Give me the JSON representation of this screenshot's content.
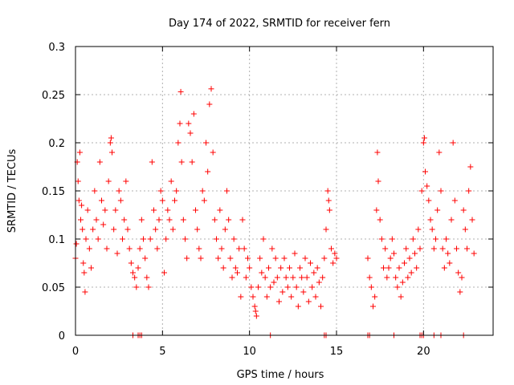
{
  "chart_data": {
    "type": "scatter",
    "title": "Day 174 of 2022, SRMTID for receiver fern",
    "xlabel": "GPS time / hours",
    "ylabel": "SRMTID / TECUs",
    "xlim": [
      0,
      24
    ],
    "ylim": [
      0,
      0.3
    ],
    "xticks": [
      0,
      5,
      10,
      15,
      20
    ],
    "yticks": [
      0,
      0.05,
      0.1,
      0.15,
      0.2,
      0.25,
      0.3
    ],
    "grid": true,
    "marker": "plus",
    "color": "#ff0000",
    "series": [
      {
        "points": [
          [
            0.0,
            0.08
          ],
          [
            0.05,
            0.095
          ],
          [
            0.1,
            0.18
          ],
          [
            0.15,
            0.16
          ],
          [
            0.2,
            0.14
          ],
          [
            0.25,
            0.19
          ],
          [
            0.3,
            0.12
          ],
          [
            0.35,
            0.135
          ],
          [
            0.4,
            0.11
          ],
          [
            0.45,
            0.075
          ],
          [
            0.5,
            0.065
          ],
          [
            0.55,
            0.045
          ],
          [
            0.6,
            0.1
          ],
          [
            0.7,
            0.13
          ],
          [
            0.8,
            0.09
          ],
          [
            0.9,
            0.07
          ],
          [
            1.0,
            0.11
          ],
          [
            1.1,
            0.15
          ],
          [
            1.2,
            0.12
          ],
          [
            1.3,
            0.1
          ],
          [
            1.4,
            0.18
          ],
          [
            1.5,
            0.14
          ],
          [
            1.6,
            0.115
          ],
          [
            1.7,
            0.13
          ],
          [
            1.8,
            0.09
          ],
          [
            1.9,
            0.16
          ],
          [
            2.0,
            0.2
          ],
          [
            2.05,
            0.205
          ],
          [
            2.1,
            0.19
          ],
          [
            2.2,
            0.11
          ],
          [
            2.3,
            0.13
          ],
          [
            2.4,
            0.085
          ],
          [
            2.5,
            0.15
          ],
          [
            2.6,
            0.14
          ],
          [
            2.7,
            0.1
          ],
          [
            2.8,
            0.12
          ],
          [
            2.9,
            0.16
          ],
          [
            3.0,
            0.11
          ],
          [
            3.1,
            0.09
          ],
          [
            3.2,
            0.075
          ],
          [
            3.3,
            0.065
          ],
          [
            3.4,
            0.06
          ],
          [
            3.5,
            0.05
          ],
          [
            3.6,
            0.07
          ],
          [
            3.7,
            0.09
          ],
          [
            3.8,
            0.12
          ],
          [
            3.9,
            0.1
          ],
          [
            4.0,
            0.08
          ],
          [
            4.1,
            0.06
          ],
          [
            4.2,
            0.05
          ],
          [
            4.3,
            0.1
          ],
          [
            4.4,
            0.18
          ],
          [
            4.5,
            0.13
          ],
          [
            4.6,
            0.11
          ],
          [
            4.7,
            0.09
          ],
          [
            4.8,
            0.12
          ],
          [
            4.9,
            0.15
          ],
          [
            5.0,
            0.14
          ],
          [
            5.1,
            0.065
          ],
          [
            5.2,
            0.1
          ],
          [
            5.3,
            0.13
          ],
          [
            5.4,
            0.12
          ],
          [
            5.5,
            0.16
          ],
          [
            5.6,
            0.11
          ],
          [
            5.7,
            0.14
          ],
          [
            5.8,
            0.15
          ],
          [
            5.9,
            0.2
          ],
          [
            6.0,
            0.22
          ],
          [
            6.05,
            0.253
          ],
          [
            6.1,
            0.18
          ],
          [
            6.2,
            0.12
          ],
          [
            6.3,
            0.1
          ],
          [
            6.4,
            0.08
          ],
          [
            6.5,
            0.22
          ],
          [
            6.6,
            0.21
          ],
          [
            6.7,
            0.18
          ],
          [
            6.8,
            0.23
          ],
          [
            6.9,
            0.13
          ],
          [
            7.0,
            0.11
          ],
          [
            7.1,
            0.09
          ],
          [
            7.2,
            0.08
          ],
          [
            7.3,
            0.15
          ],
          [
            7.4,
            0.14
          ],
          [
            7.5,
            0.2
          ],
          [
            7.6,
            0.17
          ],
          [
            7.7,
            0.24
          ],
          [
            7.8,
            0.256
          ],
          [
            7.9,
            0.19
          ],
          [
            8.0,
            0.12
          ],
          [
            8.1,
            0.1
          ],
          [
            8.2,
            0.08
          ],
          [
            8.3,
            0.13
          ],
          [
            8.4,
            0.09
          ],
          [
            8.5,
            0.07
          ],
          [
            8.6,
            0.11
          ],
          [
            8.7,
            0.15
          ],
          [
            8.8,
            0.12
          ],
          [
            8.9,
            0.08
          ],
          [
            9.0,
            0.06
          ],
          [
            9.1,
            0.1
          ],
          [
            9.2,
            0.07
          ],
          [
            9.3,
            0.065
          ],
          [
            9.4,
            0.09
          ],
          [
            9.5,
            0.04
          ],
          [
            9.6,
            0.12
          ],
          [
            9.7,
            0.09
          ],
          [
            9.8,
            0.06
          ],
          [
            9.9,
            0.08
          ],
          [
            10.0,
            0.07
          ],
          [
            10.1,
            0.05
          ],
          [
            10.2,
            0.04
          ],
          [
            10.3,
            0.03
          ],
          [
            10.35,
            0.025
          ],
          [
            10.4,
            0.02
          ],
          [
            10.5,
            0.05
          ],
          [
            10.6,
            0.08
          ],
          [
            10.7,
            0.065
          ],
          [
            10.8,
            0.1
          ],
          [
            10.9,
            0.06
          ],
          [
            11.0,
            0.04
          ],
          [
            11.1,
            0.07
          ],
          [
            11.2,
            0.05
          ],
          [
            11.3,
            0.09
          ],
          [
            11.4,
            0.055
          ],
          [
            11.5,
            0.08
          ],
          [
            11.6,
            0.06
          ],
          [
            11.7,
            0.035
          ],
          [
            11.8,
            0.07
          ],
          [
            11.9,
            0.045
          ],
          [
            12.0,
            0.08
          ],
          [
            12.1,
            0.06
          ],
          [
            12.2,
            0.05
          ],
          [
            12.3,
            0.07
          ],
          [
            12.4,
            0.04
          ],
          [
            12.5,
            0.06
          ],
          [
            12.6,
            0.085
          ],
          [
            12.7,
            0.05
          ],
          [
            12.8,
            0.03
          ],
          [
            12.9,
            0.07
          ],
          [
            13.0,
            0.06
          ],
          [
            13.1,
            0.045
          ],
          [
            13.2,
            0.08
          ],
          [
            13.3,
            0.06
          ],
          [
            13.4,
            0.035
          ],
          [
            13.5,
            0.075
          ],
          [
            13.6,
            0.05
          ],
          [
            13.7,
            0.065
          ],
          [
            13.8,
            0.04
          ],
          [
            13.9,
            0.07
          ],
          [
            14.0,
            0.055
          ],
          [
            14.1,
            0.03
          ],
          [
            14.2,
            0.06
          ],
          [
            14.3,
            0.08
          ],
          [
            14.4,
            0.11
          ],
          [
            14.5,
            0.15
          ],
          [
            14.55,
            0.14
          ],
          [
            14.6,
            0.13
          ],
          [
            14.7,
            0.09
          ],
          [
            14.8,
            0.075
          ],
          [
            14.9,
            0.085
          ],
          [
            15.0,
            0.08
          ],
          [
            16.8,
            0.08
          ],
          [
            16.9,
            0.06
          ],
          [
            17.0,
            0.05
          ],
          [
            17.1,
            0.03
          ],
          [
            17.2,
            0.04
          ],
          [
            17.3,
            0.13
          ],
          [
            17.35,
            0.19
          ],
          [
            17.4,
            0.16
          ],
          [
            17.5,
            0.12
          ],
          [
            17.6,
            0.1
          ],
          [
            17.7,
            0.07
          ],
          [
            17.8,
            0.09
          ],
          [
            17.9,
            0.06
          ],
          [
            18.0,
            0.07
          ],
          [
            18.1,
            0.08
          ],
          [
            18.2,
            0.1
          ],
          [
            18.3,
            0.085
          ],
          [
            18.4,
            0.06
          ],
          [
            18.5,
            0.05
          ],
          [
            18.6,
            0.07
          ],
          [
            18.7,
            0.04
          ],
          [
            18.8,
            0.055
          ],
          [
            18.9,
            0.075
          ],
          [
            19.0,
            0.09
          ],
          [
            19.1,
            0.06
          ],
          [
            19.2,
            0.08
          ],
          [
            19.3,
            0.065
          ],
          [
            19.4,
            0.1
          ],
          [
            19.5,
            0.085
          ],
          [
            19.6,
            0.07
          ],
          [
            19.7,
            0.11
          ],
          [
            19.8,
            0.09
          ],
          [
            19.9,
            0.15
          ],
          [
            20.0,
            0.2
          ],
          [
            20.05,
            0.205
          ],
          [
            20.1,
            0.17
          ],
          [
            20.2,
            0.155
          ],
          [
            20.3,
            0.14
          ],
          [
            20.4,
            0.12
          ],
          [
            20.5,
            0.11
          ],
          [
            20.6,
            0.09
          ],
          [
            20.7,
            0.1
          ],
          [
            20.8,
            0.13
          ],
          [
            20.9,
            0.19
          ],
          [
            21.0,
            0.15
          ],
          [
            21.1,
            0.09
          ],
          [
            21.2,
            0.07
          ],
          [
            21.3,
            0.1
          ],
          [
            21.4,
            0.085
          ],
          [
            21.5,
            0.075
          ],
          [
            21.6,
            0.12
          ],
          [
            21.7,
            0.2
          ],
          [
            21.8,
            0.14
          ],
          [
            21.9,
            0.09
          ],
          [
            22.0,
            0.065
          ],
          [
            22.1,
            0.045
          ],
          [
            22.2,
            0.06
          ],
          [
            22.3,
            0.13
          ],
          [
            22.4,
            0.11
          ],
          [
            22.5,
            0.09
          ],
          [
            22.6,
            0.15
          ],
          [
            22.7,
            0.175
          ],
          [
            22.8,
            0.12
          ],
          [
            22.9,
            0.085
          ]
        ]
      },
      {
        "points": [
          [
            3.3,
            0
          ],
          [
            3.6,
            0
          ],
          [
            3.7,
            0
          ],
          [
            3.8,
            0
          ],
          [
            11.2,
            0
          ],
          [
            14.3,
            0
          ],
          [
            14.4,
            0
          ],
          [
            16.8,
            0
          ],
          [
            16.9,
            0
          ],
          [
            18.3,
            0
          ],
          [
            19.8,
            0
          ],
          [
            19.9,
            0
          ],
          [
            20.0,
            0
          ],
          [
            20.6,
            0
          ],
          [
            21.0,
            0
          ],
          [
            22.3,
            0
          ]
        ]
      }
    ]
  }
}
